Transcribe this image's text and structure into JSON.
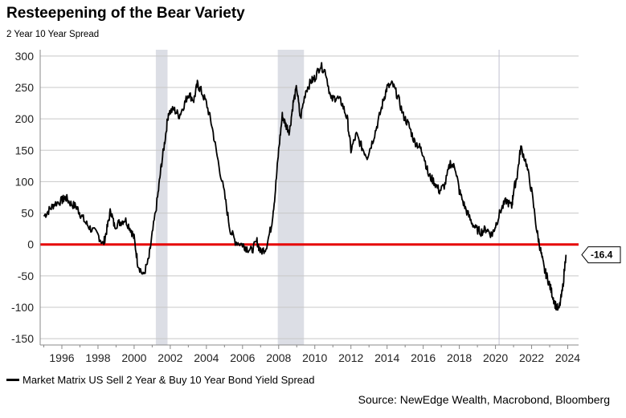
{
  "header": {
    "title": "Resteepening of the Bear Variety",
    "subtitle": "2 Year 10 Year Spread"
  },
  "legend": {
    "label": "Market Matrix US Sell 2 Year & Buy 10 Year Bond Yield Spread"
  },
  "source": "Source: NewEdge Wealth, Macrobond, Bloomberg",
  "callout": {
    "label": "-16.4",
    "value": -16.4
  },
  "colors": {
    "series": "#000000",
    "zero_line": "#e60000",
    "recession": "#dcdee5",
    "grid": "#c8c8c8",
    "marker_2020": "#c0c0d0"
  },
  "chart_data": {
    "type": "line",
    "title": "Resteepening of the Bear Variety",
    "subtitle": "2 Year 10 Year Spread",
    "xlabel": "",
    "ylabel": "",
    "xlim": [
      1994.8,
      2024.6
    ],
    "ylim": [
      -160,
      310
    ],
    "x_ticks": [
      1996,
      1998,
      2000,
      2002,
      2004,
      2006,
      2008,
      2010,
      2012,
      2014,
      2016,
      2018,
      2020,
      2022,
      2024
    ],
    "y_ticks": [
      300,
      250,
      200,
      150,
      100,
      50,
      0,
      -50,
      -100,
      -150
    ],
    "grid": true,
    "legend_position": "bottom-left",
    "reference_lines": [
      {
        "axis": "y",
        "value": 0,
        "color": "#e60000"
      },
      {
        "axis": "x",
        "value": 2020.2,
        "color": "#c0c0d0"
      }
    ],
    "recession_bands": [
      [
        2001.2,
        2001.85
      ],
      [
        2007.95,
        2009.4
      ]
    ],
    "last_value": -16.4,
    "series": [
      {
        "name": "Market Matrix US Sell 2 Year & Buy 10 Year Bond Yield Spread",
        "x": [
          1995.0,
          1995.3,
          1995.6,
          1996.0,
          1996.2,
          1996.5,
          1996.8,
          1997.0,
          1997.3,
          1997.6,
          1998.0,
          1998.3,
          1998.5,
          1998.7,
          1998.9,
          1999.2,
          1999.5,
          1999.8,
          2000.0,
          2000.2,
          2000.5,
          2000.8,
          2001.0,
          2001.3,
          2001.5,
          2001.7,
          2001.9,
          2002.2,
          2002.5,
          2002.8,
          2003.0,
          2003.3,
          2003.5,
          2003.7,
          2004.0,
          2004.3,
          2004.6,
          2005.0,
          2005.3,
          2005.6,
          2006.0,
          2006.2,
          2006.5,
          2006.8,
          2007.0,
          2007.3,
          2007.6,
          2007.8,
          2008.0,
          2008.2,
          2008.4,
          2008.6,
          2008.8,
          2009.0,
          2009.2,
          2009.5,
          2009.8,
          2010.0,
          2010.3,
          2010.6,
          2010.9,
          2011.2,
          2011.5,
          2011.8,
          2012.0,
          2012.3,
          2012.6,
          2012.9,
          2013.2,
          2013.5,
          2013.8,
          2014.0,
          2014.3,
          2014.6,
          2014.9,
          2015.2,
          2015.5,
          2015.8,
          2016.0,
          2016.3,
          2016.6,
          2016.9,
          2017.2,
          2017.5,
          2017.8,
          2018.0,
          2018.3,
          2018.6,
          2018.9,
          2019.2,
          2019.5,
          2019.8,
          2020.0,
          2020.3,
          2020.6,
          2020.9,
          2021.0,
          2021.2,
          2021.4,
          2021.7,
          2022.0,
          2022.3,
          2022.5,
          2022.7,
          2022.9,
          2023.1,
          2023.3,
          2023.5,
          2023.7,
          2023.9
        ],
        "values": [
          45,
          55,
          65,
          70,
          75,
          65,
          60,
          50,
          35,
          25,
          15,
          0,
          25,
          55,
          30,
          35,
          40,
          25,
          10,
          -30,
          -50,
          -25,
          15,
          75,
          125,
          165,
          210,
          215,
          205,
          225,
          240,
          230,
          255,
          245,
          225,
          190,
          140,
          80,
          25,
          5,
          0,
          -5,
          -10,
          5,
          -12,
          -5,
          30,
          80,
          150,
          205,
          190,
          180,
          225,
          250,
          200,
          245,
          260,
          265,
          285,
          275,
          230,
          235,
          225,
          200,
          150,
          175,
          155,
          140,
          165,
          195,
          230,
          250,
          255,
          235,
          205,
          190,
          165,
          155,
          145,
          110,
          100,
          85,
          95,
          130,
          120,
          85,
          60,
          40,
          25,
          20,
          25,
          15,
          30,
          55,
          70,
          60,
          85,
          110,
          155,
          130,
          85,
          20,
          -10,
          -40,
          -55,
          -75,
          -95,
          -105,
          -75,
          -16.4
        ]
      }
    ]
  }
}
